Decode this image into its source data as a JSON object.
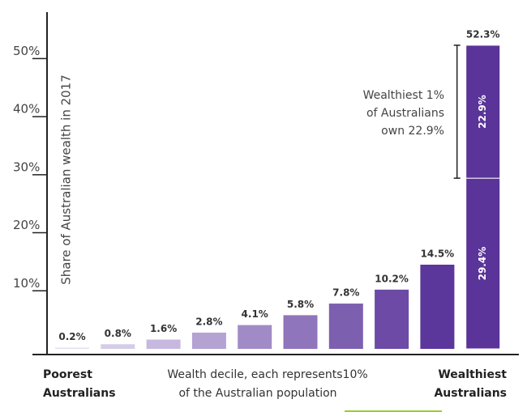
{
  "chart_data": {
    "type": "bar",
    "y_label": "Share of Australian wealth in 2017",
    "x_label": [
      "Wealth decile, each represents10%",
      "of the Australian population"
    ],
    "left_label": [
      "Poorest",
      "Australians"
    ],
    "right_label": [
      "Wealthiest",
      "Australians"
    ],
    "annotation": [
      "Wealthiest 1%",
      "of Australians",
      "own 22.9%"
    ],
    "categories": [
      null,
      null,
      null,
      null,
      null,
      null,
      null,
      null,
      null,
      null
    ],
    "values": [
      0.2,
      0.8,
      1.6,
      2.8,
      4.1,
      5.8,
      7.8,
      10.2,
      14.5,
      52.3
    ],
    "value_labels": [
      "0.2%",
      "0.8%",
      "1.6%",
      "2.8%",
      "4.1%",
      "5.8%",
      "7.8%",
      "10.2%",
      "14.5%",
      "52.3%"
    ],
    "colors": [
      "#e4def0",
      "#d6cce8",
      "#c7b8df",
      "#b4a2d3",
      "#a18bc7",
      "#8f75bb",
      "#7d5fb0",
      "#6c4aa6",
      "#5b369b",
      "#5a3498"
    ],
    "top_decile_split": {
      "values": [
        29.4,
        22.9
      ],
      "value_labels": [
        "29.4%",
        "22.9%"
      ]
    },
    "ylim": [
      0,
      58
    ],
    "yticks": [
      {
        "value": 10,
        "label": "10%"
      },
      {
        "value": 20,
        "label": "20%"
      },
      {
        "value": 30,
        "label": "30%"
      },
      {
        "value": 40,
        "label": "40%"
      },
      {
        "value": 50,
        "label": "50%"
      }
    ]
  }
}
